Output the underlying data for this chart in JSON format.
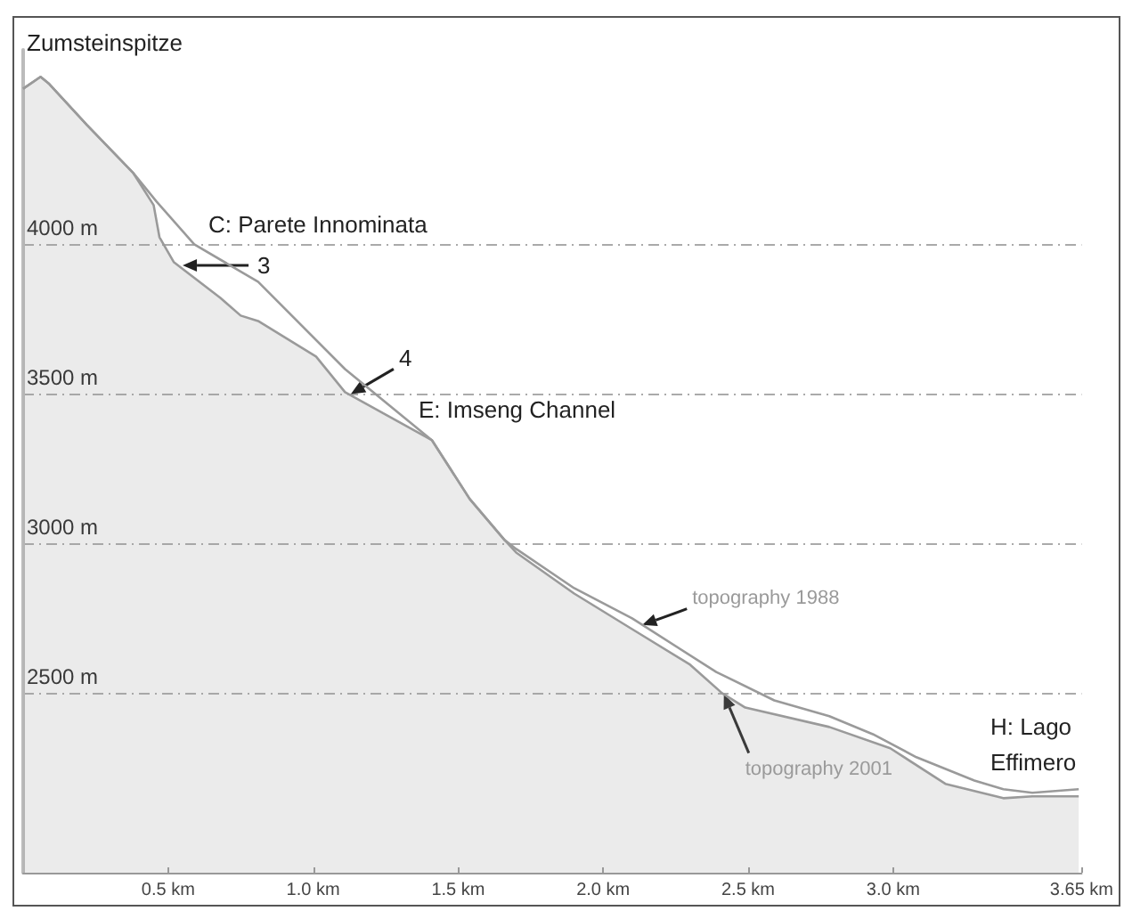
{
  "chart_data": {
    "type": "line",
    "annotations": [
      "Zumsteinspitze",
      "C: Parete Innominata",
      {
        "text": "3",
        "x": 0.55,
        "y": 3930
      },
      {
        "text": "4",
        "x": 1.13,
        "y": 3500
      },
      "E: Imseng Channel",
      "H: Lago Effimero"
    ],
    "series": [
      {
        "name": "topography 2001",
        "type": "area",
        "color": "#9a9a9a",
        "x": [
          0,
          0.06,
          0.09,
          0.22,
          0.38,
          0.45,
          0.47,
          0.52,
          0.68,
          0.75,
          0.81,
          1.01,
          1.11,
          1.41,
          1.54,
          1.66,
          1.7,
          1.9,
          2.1,
          2.3,
          2.41,
          2.49,
          2.78,
          2.99,
          3.18,
          3.38,
          3.48,
          3.64
        ],
        "values": [
          4520,
          4560,
          4536,
          4399,
          4238,
          4131,
          4024,
          3940,
          3821,
          3762,
          3744,
          3625,
          3506,
          3345,
          3149,
          3012,
          2970,
          2833,
          2714,
          2595,
          2500,
          2452,
          2387,
          2316,
          2197,
          2149,
          2155,
          2155
        ]
      },
      {
        "name": "topography 1988",
        "color": "#9a9a9a",
        "x": [
          0,
          0.06,
          0.09,
          0.22,
          0.38,
          0.46,
          0.59,
          0.81,
          1.11,
          1.41,
          1.54,
          1.66,
          1.7,
          1.9,
          2.1,
          2.39,
          2.59,
          2.78,
          2.93,
          3.08,
          3.28,
          3.38,
          3.48,
          3.64
        ],
        "values": [
          4520,
          4560,
          4536,
          4399,
          4238,
          4143,
          4000,
          3875,
          3583,
          3345,
          3149,
          3012,
          2982,
          2851,
          2750,
          2571,
          2476,
          2423,
          2363,
          2286,
          2208,
          2179,
          2167,
          2179
        ]
      }
    ],
    "xlim": [
      0,
      3.65
    ],
    "ylim": [
      1900,
      4650
    ],
    "xticks": [
      {
        "value": 0.5,
        "label": "0.5 km"
      },
      {
        "value": 1.0,
        "label": "1.0 km"
      },
      {
        "value": 1.5,
        "label": "1.5 km"
      },
      {
        "value": 2.0,
        "label": "2.0 km"
      },
      {
        "value": 2.5,
        "label": "2.5 km"
      },
      {
        "value": 3.0,
        "label": "3.0 km"
      },
      {
        "value": 3.65,
        "label": "3.65 km"
      }
    ],
    "yticks": [
      {
        "value": 2500,
        "label": "2500 m"
      },
      {
        "value": 3000,
        "label": "3000 m"
      },
      {
        "value": 3500,
        "label": "3500 m"
      },
      {
        "value": 4000,
        "label": "4000 m"
      }
    ],
    "grid": "y",
    "marker": "none",
    "line_style": "solid"
  }
}
